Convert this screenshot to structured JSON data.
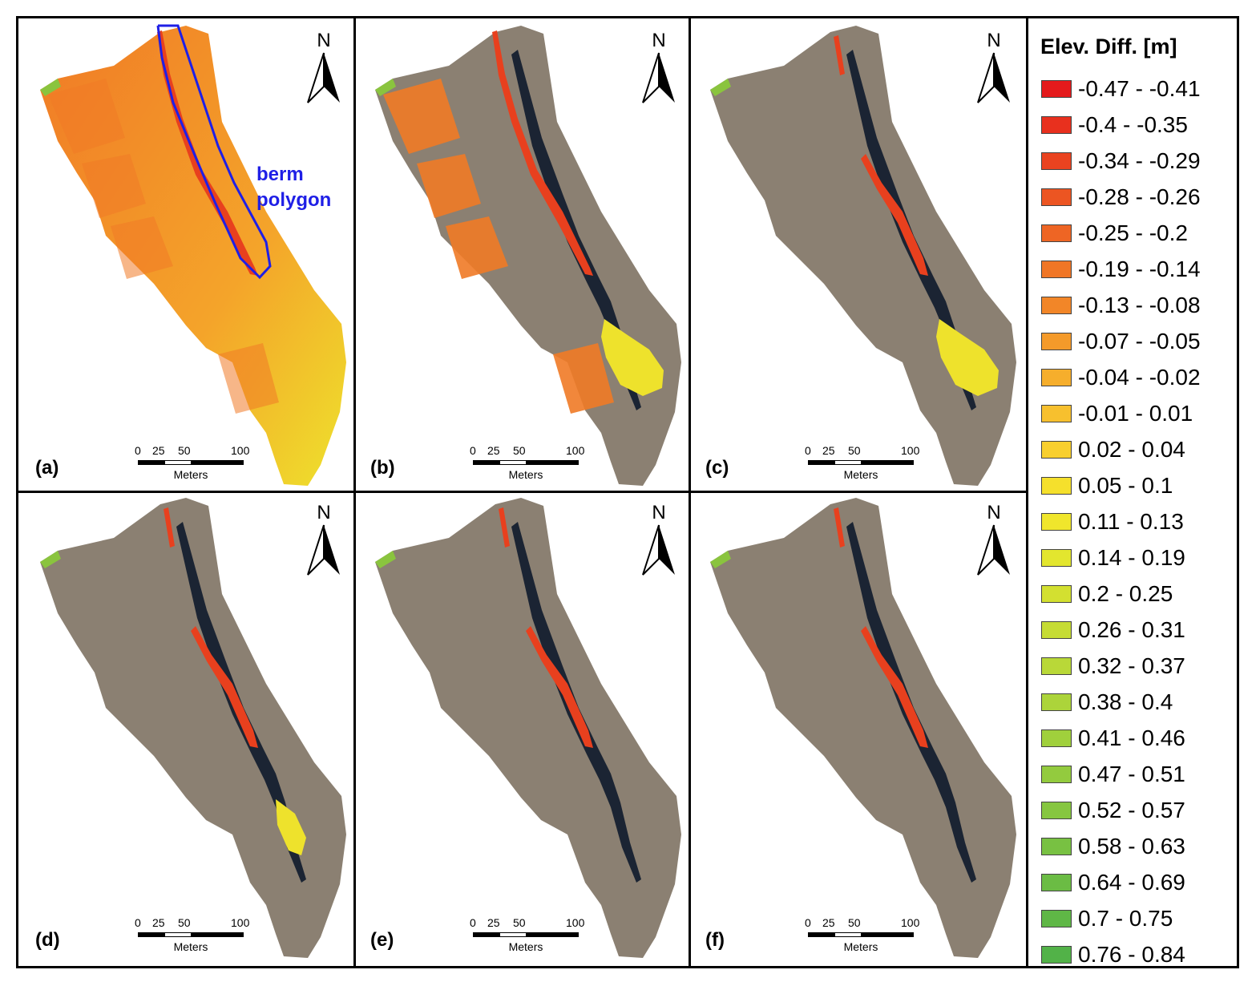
{
  "legend": {
    "title": "Elev. Diff. [m]",
    "items": [
      {
        "label": "-0.47 - -0.41",
        "color": "#e41a1c"
      },
      {
        "label": "-0.4 - -0.35",
        "color": "#e8301e"
      },
      {
        "label": "-0.34 - -0.29",
        "color": "#ea4320"
      },
      {
        "label": "-0.28 - -0.26",
        "color": "#ec5522"
      },
      {
        "label": "-0.25 - -0.2",
        "color": "#ee6524"
      },
      {
        "label": "-0.19 - -0.14",
        "color": "#f07626"
      },
      {
        "label": "-0.13 - -0.08",
        "color": "#f28628"
      },
      {
        "label": "-0.07 - -0.05",
        "color": "#f49a2a"
      },
      {
        "label": "-0.04 - -0.02",
        "color": "#f6ae2c"
      },
      {
        "label": "-0.01 - 0.01",
        "color": "#f7c02e"
      },
      {
        "label": "0.02 - 0.04",
        "color": "#f8cf2e"
      },
      {
        "label": "0.05 - 0.1",
        "color": "#f5e02c"
      },
      {
        "label": "0.11 - 0.13",
        "color": "#f0e62c"
      },
      {
        "label": "0.14 - 0.19",
        "color": "#e3e62e"
      },
      {
        "label": "0.2 - 0.25",
        "color": "#d3e030"
      },
      {
        "label": "0.26 - 0.31",
        "color": "#c6dc34"
      },
      {
        "label": "0.32 - 0.37",
        "color": "#b9d838"
      },
      {
        "label": "0.38 - 0.4",
        "color": "#acd43a"
      },
      {
        "label": "0.41 - 0.46",
        "color": "#a0d03c"
      },
      {
        "label": "0.47 - 0.51",
        "color": "#93cb3e"
      },
      {
        "label": "0.52 - 0.57",
        "color": "#86c640"
      },
      {
        "label": "0.58 - 0.63",
        "color": "#78c142"
      },
      {
        "label": "0.64 - 0.69",
        "color": "#6bbc44"
      },
      {
        "label": "0.7 - 0.75",
        "color": "#5fb746"
      },
      {
        "label": "0.76 - 0.84",
        "color": "#52b248"
      }
    ]
  },
  "panels": [
    {
      "label": "(a)",
      "variant": "full"
    },
    {
      "label": "(b)",
      "variant": "partial"
    },
    {
      "label": "(c)",
      "variant": "channel"
    },
    {
      "label": "(d)",
      "variant": "berm-plus"
    },
    {
      "label": "(e)",
      "variant": "berm"
    },
    {
      "label": "(f)",
      "variant": "berm"
    }
  ],
  "north_label": "N",
  "scalebar": {
    "ticks": [
      "0",
      "25",
      "50",
      "100"
    ],
    "unit": "Meters"
  },
  "berm_annotation": {
    "line1": "berm",
    "line2": "polygon",
    "color": "#1f1fe6"
  },
  "colors": {
    "imagery": "#8b8072",
    "channel": "#1b2433",
    "orange": "#f07a26",
    "yellow": "#eee22c",
    "red": "#e8401e",
    "green": "#8ac43e"
  }
}
